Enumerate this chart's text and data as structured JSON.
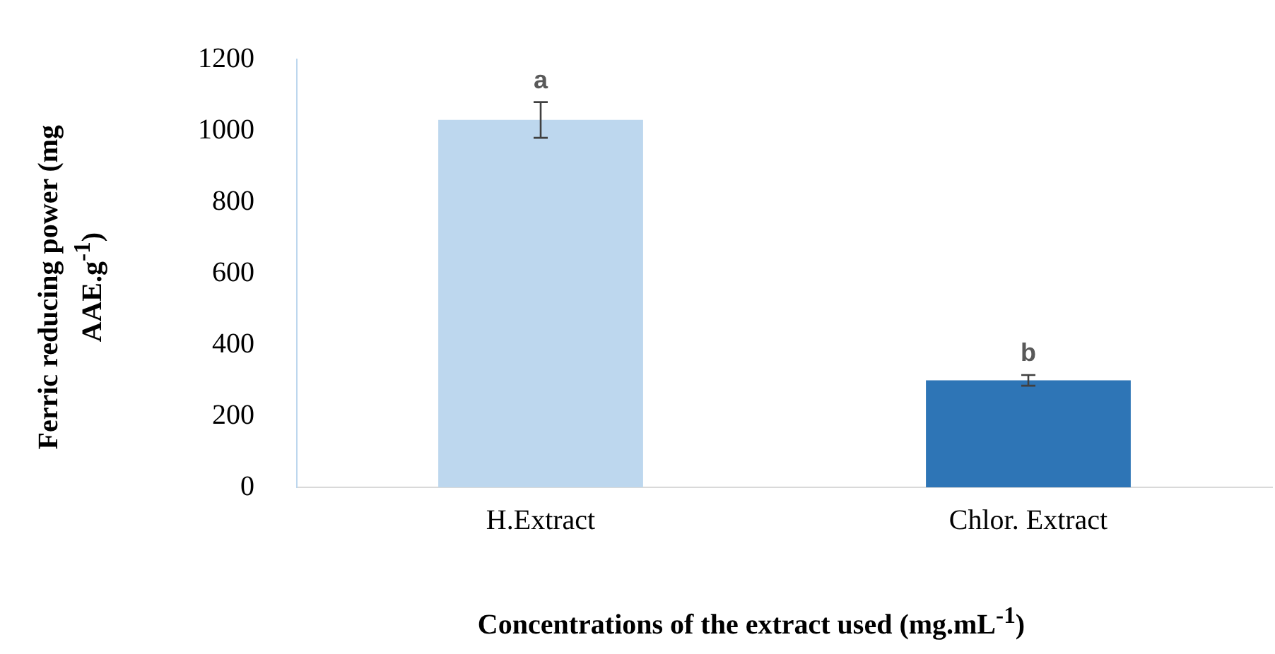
{
  "chart_data": {
    "type": "bar",
    "xlabel": "Concentrations of the extract used (mg.mL$^{-1}$)",
    "ylabel": "Ferric reducing power (mg AAE.g$^{-1}$)",
    "categories": [
      "H.Extract",
      "Chlor. Extract"
    ],
    "values": [
      1030,
      300
    ],
    "colors": [
      "#bdd7ee",
      "#2e75b6"
    ],
    "errors": [
      50,
      15
    ],
    "ylim": [
      0,
      1200
    ],
    "yticks": [
      0,
      200,
      400,
      600,
      800,
      1000,
      1200
    ],
    "grid": false,
    "legend": false,
    "annotations": [
      {
        "text": "a",
        "x": "H.Extract",
        "y": 1080
      },
      {
        "text": "b",
        "x": "Chlor. Extract",
        "y": 315
      }
    ]
  }
}
